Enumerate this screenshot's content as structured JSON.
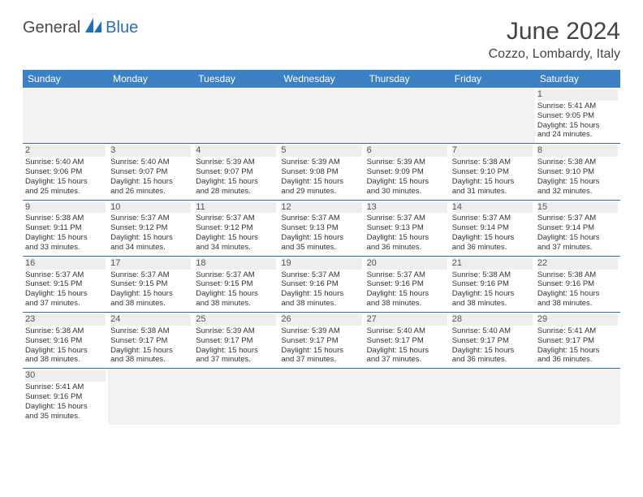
{
  "brand": {
    "part1": "General",
    "part2": "Blue"
  },
  "header": {
    "month_title": "June 2024",
    "location": "Cozzo, Lombardy, Italy"
  },
  "colors": {
    "header_bg": "#3c81c4",
    "header_text": "#ffffff",
    "divider": "#2a6db5",
    "blank_bg": "#f2f2f2",
    "daynum_bg": "#eeeeee",
    "logo_blue": "#2a6db5",
    "logo_gray": "#4a4a4a"
  },
  "day_names": [
    "Sunday",
    "Monday",
    "Tuesday",
    "Wednesday",
    "Thursday",
    "Friday",
    "Saturday"
  ],
  "weeks": [
    [
      {
        "blank": true
      },
      {
        "blank": true
      },
      {
        "blank": true
      },
      {
        "blank": true
      },
      {
        "blank": true
      },
      {
        "blank": true
      },
      {
        "day": "1",
        "sunrise": "Sunrise: 5:41 AM",
        "sunset": "Sunset: 9:05 PM",
        "dl1": "Daylight: 15 hours",
        "dl2": "and 24 minutes."
      }
    ],
    [
      {
        "day": "2",
        "sunrise": "Sunrise: 5:40 AM",
        "sunset": "Sunset: 9:06 PM",
        "dl1": "Daylight: 15 hours",
        "dl2": "and 25 minutes."
      },
      {
        "day": "3",
        "sunrise": "Sunrise: 5:40 AM",
        "sunset": "Sunset: 9:07 PM",
        "dl1": "Daylight: 15 hours",
        "dl2": "and 26 minutes."
      },
      {
        "day": "4",
        "sunrise": "Sunrise: 5:39 AM",
        "sunset": "Sunset: 9:07 PM",
        "dl1": "Daylight: 15 hours",
        "dl2": "and 28 minutes."
      },
      {
        "day": "5",
        "sunrise": "Sunrise: 5:39 AM",
        "sunset": "Sunset: 9:08 PM",
        "dl1": "Daylight: 15 hours",
        "dl2": "and 29 minutes."
      },
      {
        "day": "6",
        "sunrise": "Sunrise: 5:39 AM",
        "sunset": "Sunset: 9:09 PM",
        "dl1": "Daylight: 15 hours",
        "dl2": "and 30 minutes."
      },
      {
        "day": "7",
        "sunrise": "Sunrise: 5:38 AM",
        "sunset": "Sunset: 9:10 PM",
        "dl1": "Daylight: 15 hours",
        "dl2": "and 31 minutes."
      },
      {
        "day": "8",
        "sunrise": "Sunrise: 5:38 AM",
        "sunset": "Sunset: 9:10 PM",
        "dl1": "Daylight: 15 hours",
        "dl2": "and 32 minutes."
      }
    ],
    [
      {
        "day": "9",
        "sunrise": "Sunrise: 5:38 AM",
        "sunset": "Sunset: 9:11 PM",
        "dl1": "Daylight: 15 hours",
        "dl2": "and 33 minutes."
      },
      {
        "day": "10",
        "sunrise": "Sunrise: 5:37 AM",
        "sunset": "Sunset: 9:12 PM",
        "dl1": "Daylight: 15 hours",
        "dl2": "and 34 minutes."
      },
      {
        "day": "11",
        "sunrise": "Sunrise: 5:37 AM",
        "sunset": "Sunset: 9:12 PM",
        "dl1": "Daylight: 15 hours",
        "dl2": "and 34 minutes."
      },
      {
        "day": "12",
        "sunrise": "Sunrise: 5:37 AM",
        "sunset": "Sunset: 9:13 PM",
        "dl1": "Daylight: 15 hours",
        "dl2": "and 35 minutes."
      },
      {
        "day": "13",
        "sunrise": "Sunrise: 5:37 AM",
        "sunset": "Sunset: 9:13 PM",
        "dl1": "Daylight: 15 hours",
        "dl2": "and 36 minutes."
      },
      {
        "day": "14",
        "sunrise": "Sunrise: 5:37 AM",
        "sunset": "Sunset: 9:14 PM",
        "dl1": "Daylight: 15 hours",
        "dl2": "and 36 minutes."
      },
      {
        "day": "15",
        "sunrise": "Sunrise: 5:37 AM",
        "sunset": "Sunset: 9:14 PM",
        "dl1": "Daylight: 15 hours",
        "dl2": "and 37 minutes."
      }
    ],
    [
      {
        "day": "16",
        "sunrise": "Sunrise: 5:37 AM",
        "sunset": "Sunset: 9:15 PM",
        "dl1": "Daylight: 15 hours",
        "dl2": "and 37 minutes."
      },
      {
        "day": "17",
        "sunrise": "Sunrise: 5:37 AM",
        "sunset": "Sunset: 9:15 PM",
        "dl1": "Daylight: 15 hours",
        "dl2": "and 38 minutes."
      },
      {
        "day": "18",
        "sunrise": "Sunrise: 5:37 AM",
        "sunset": "Sunset: 9:15 PM",
        "dl1": "Daylight: 15 hours",
        "dl2": "and 38 minutes."
      },
      {
        "day": "19",
        "sunrise": "Sunrise: 5:37 AM",
        "sunset": "Sunset: 9:16 PM",
        "dl1": "Daylight: 15 hours",
        "dl2": "and 38 minutes."
      },
      {
        "day": "20",
        "sunrise": "Sunrise: 5:37 AM",
        "sunset": "Sunset: 9:16 PM",
        "dl1": "Daylight: 15 hours",
        "dl2": "and 38 minutes."
      },
      {
        "day": "21",
        "sunrise": "Sunrise: 5:38 AM",
        "sunset": "Sunset: 9:16 PM",
        "dl1": "Daylight: 15 hours",
        "dl2": "and 38 minutes."
      },
      {
        "day": "22",
        "sunrise": "Sunrise: 5:38 AM",
        "sunset": "Sunset: 9:16 PM",
        "dl1": "Daylight: 15 hours",
        "dl2": "and 38 minutes."
      }
    ],
    [
      {
        "day": "23",
        "sunrise": "Sunrise: 5:38 AM",
        "sunset": "Sunset: 9:16 PM",
        "dl1": "Daylight: 15 hours",
        "dl2": "and 38 minutes."
      },
      {
        "day": "24",
        "sunrise": "Sunrise: 5:38 AM",
        "sunset": "Sunset: 9:17 PM",
        "dl1": "Daylight: 15 hours",
        "dl2": "and 38 minutes."
      },
      {
        "day": "25",
        "sunrise": "Sunrise: 5:39 AM",
        "sunset": "Sunset: 9:17 PM",
        "dl1": "Daylight: 15 hours",
        "dl2": "and 37 minutes."
      },
      {
        "day": "26",
        "sunrise": "Sunrise: 5:39 AM",
        "sunset": "Sunset: 9:17 PM",
        "dl1": "Daylight: 15 hours",
        "dl2": "and 37 minutes."
      },
      {
        "day": "27",
        "sunrise": "Sunrise: 5:40 AM",
        "sunset": "Sunset: 9:17 PM",
        "dl1": "Daylight: 15 hours",
        "dl2": "and 37 minutes."
      },
      {
        "day": "28",
        "sunrise": "Sunrise: 5:40 AM",
        "sunset": "Sunset: 9:17 PM",
        "dl1": "Daylight: 15 hours",
        "dl2": "and 36 minutes."
      },
      {
        "day": "29",
        "sunrise": "Sunrise: 5:41 AM",
        "sunset": "Sunset: 9:17 PM",
        "dl1": "Daylight: 15 hours",
        "dl2": "and 36 minutes."
      }
    ],
    [
      {
        "day": "30",
        "sunrise": "Sunrise: 5:41 AM",
        "sunset": "Sunset: 9:16 PM",
        "dl1": "Daylight: 15 hours",
        "dl2": "and 35 minutes."
      },
      {
        "blank": true
      },
      {
        "blank": true
      },
      {
        "blank": true
      },
      {
        "blank": true
      },
      {
        "blank": true
      },
      {
        "blank": true
      }
    ]
  ]
}
